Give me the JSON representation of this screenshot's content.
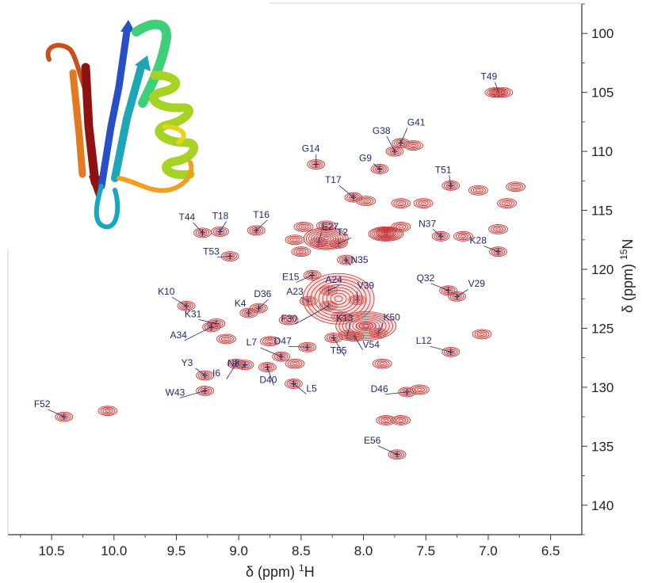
{
  "colors": {
    "contour": "#c0302f",
    "contour_fill": "#e8a3a0",
    "peak_label": "#1f2a6b",
    "axis": "#333333"
  },
  "chart_data": {
    "type": "scatter",
    "xlabel": "δ (ppm) ¹H",
    "ylabel": "δ (ppm) ¹⁵N",
    "xlabel_main": "δ (ppm) ",
    "xlabel_nucleus": "H",
    "xlabel_mass": "1",
    "ylabel_main": "δ (ppm) ",
    "ylabel_nucleus": "N",
    "ylabel_mass": "15",
    "x_reversed": true,
    "xlim": [
      10.85,
      6.25
    ],
    "ylim": [
      97.5,
      142.5
    ],
    "x_ticks": [
      "10.5",
      "10.0",
      "9.5",
      "9.0",
      "8.5",
      "8.0",
      "7.5",
      "7.0",
      "6.5"
    ],
    "y_ticks": [
      "100",
      "105",
      "110",
      "115",
      "120",
      "125",
      "130",
      "135",
      "140"
    ],
    "inset": "ribbon diagram of the protein structure (top-left)",
    "peaks": [
      {
        "label": "T49",
        "x": 6.92,
        "y": 105.0
      },
      {
        "label": "G41",
        "x": 7.7,
        "y": 109.3
      },
      {
        "label": "G38",
        "x": 7.75,
        "y": 110.0
      },
      {
        "label": "G9",
        "x": 7.87,
        "y": 111.5
      },
      {
        "label": "G14",
        "x": 8.38,
        "y": 111.1
      },
      {
        "label": "T51",
        "x": 7.3,
        "y": 112.9
      },
      {
        "label": "T17",
        "x": 8.08,
        "y": 113.9
      },
      {
        "label": "T44",
        "x": 9.29,
        "y": 116.9
      },
      {
        "label": "T18",
        "x": 9.15,
        "y": 116.8
      },
      {
        "label": "T16",
        "x": 8.86,
        "y": 116.7
      },
      {
        "label": "T53",
        "x": 9.07,
        "y": 118.9
      },
      {
        "label": "E27",
        "x": 8.36,
        "y": 117.7
      },
      {
        "label": "T2",
        "x": 8.2,
        "y": 117.8
      },
      {
        "label": "N37",
        "x": 7.38,
        "y": 117.2
      },
      {
        "label": "K28",
        "x": 6.92,
        "y": 118.5
      },
      {
        "label": "N35",
        "x": 8.14,
        "y": 119.2
      },
      {
        "label": "E15",
        "x": 8.41,
        "y": 120.5
      },
      {
        "label": "A24",
        "x": 8.28,
        "y": 121.8
      },
      {
        "label": "Q32",
        "x": 7.32,
        "y": 121.8
      },
      {
        "label": "V29",
        "x": 7.25,
        "y": 122.3
      },
      {
        "label": "V39",
        "x": 8.05,
        "y": 122.6
      },
      {
        "label": "K10",
        "x": 9.42,
        "y": 123.1
      },
      {
        "label": "D36",
        "x": 8.84,
        "y": 123.3
      },
      {
        "label": "A23",
        "x": 8.44,
        "y": 122.7
      },
      {
        "label": "K4",
        "x": 8.92,
        "y": 123.7
      },
      {
        "label": "K31",
        "x": 9.18,
        "y": 124.6
      },
      {
        "label": "F30",
        "x": 8.28,
        "y": 123.1
      },
      {
        "label": "K13",
        "x": 8.13,
        "y": 125.6
      },
      {
        "label": "K50",
        "x": 7.88,
        "y": 125.4
      },
      {
        "label": "A34",
        "x": 9.22,
        "y": 124.9
      },
      {
        "label": "D47",
        "x": 8.45,
        "y": 126.6
      },
      {
        "label": "T55",
        "x": 8.24,
        "y": 125.8
      },
      {
        "label": "V54",
        "x": 8.07,
        "y": 125.7
      },
      {
        "label": "L12",
        "x": 7.3,
        "y": 127.0
      },
      {
        "label": "L7",
        "x": 8.66,
        "y": 127.4
      },
      {
        "label": "I6",
        "x": 9.02,
        "y": 128.0
      },
      {
        "label": "N8",
        "x": 8.95,
        "y": 128.1
      },
      {
        "label": "D40",
        "x": 8.77,
        "y": 128.3
      },
      {
        "label": "Y3",
        "x": 9.27,
        "y": 129.0
      },
      {
        "label": "W43",
        "x": 9.27,
        "y": 130.3
      },
      {
        "label": "L5",
        "x": 8.56,
        "y": 129.7
      },
      {
        "label": "D46",
        "x": 7.65,
        "y": 130.4
      },
      {
        "label": "F52",
        "x": 10.4,
        "y": 132.5
      },
      {
        "label": "E56",
        "x": 7.73,
        "y": 135.7
      }
    ],
    "unassigned_peaks": [
      {
        "x": 7.82,
        "y": 116.9
      },
      {
        "x": 7.52,
        "y": 114.4
      },
      {
        "x": 7.7,
        "y": 114.4
      },
      {
        "x": 7.98,
        "y": 114.2
      },
      {
        "x": 7.08,
        "y": 113.3
      },
      {
        "x": 6.85,
        "y": 114.4
      },
      {
        "x": 6.78,
        "y": 113.0
      },
      {
        "x": 6.92,
        "y": 116.6
      },
      {
        "x": 6.95,
        "y": 105.0
      },
      {
        "x": 6.88,
        "y": 105.0
      },
      {
        "x": 7.2,
        "y": 117.2
      },
      {
        "x": 7.05,
        "y": 125.5
      },
      {
        "x": 7.85,
        "y": 128.0
      },
      {
        "x": 7.55,
        "y": 130.2
      },
      {
        "x": 7.82,
        "y": 132.8
      },
      {
        "x": 7.7,
        "y": 132.8
      },
      {
        "x": 10.05,
        "y": 132.0
      },
      {
        "x": 8.55,
        "y": 117.5
      },
      {
        "x": 8.48,
        "y": 116.4
      },
      {
        "x": 8.3,
        "y": 116.3
      },
      {
        "x": 7.7,
        "y": 116.4
      },
      {
        "x": 9.1,
        "y": 125.9
      },
      {
        "x": 8.75,
        "y": 126.1
      },
      {
        "x": 8.6,
        "y": 124.3
      },
      {
        "x": 7.98,
        "y": 124.8
      },
      {
        "x": 8.18,
        "y": 124.0
      },
      {
        "x": 8.55,
        "y": 128.0
      },
      {
        "x": 8.5,
        "y": 118.5
      },
      {
        "x": 7.6,
        "y": 109.5
      }
    ],
    "grid": false
  }
}
